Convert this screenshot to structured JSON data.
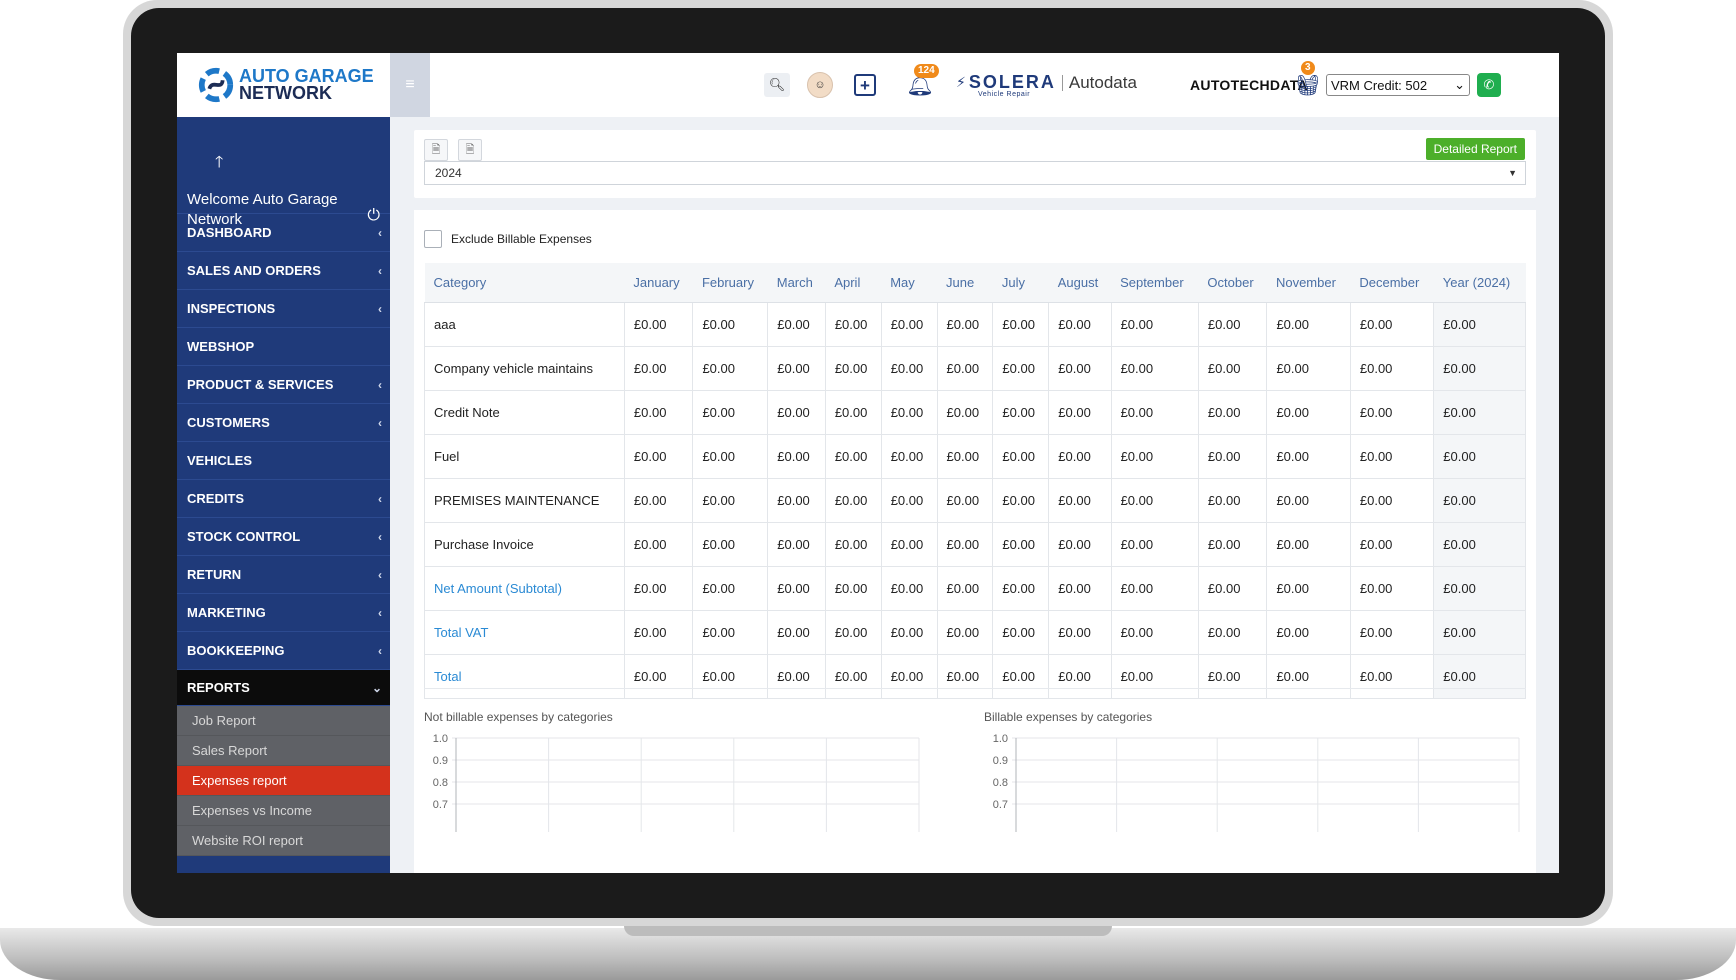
{
  "brand": {
    "line1": "AUTO GARAGE",
    "line2": "NETWORK"
  },
  "sidebar": {
    "welcome": "Welcome Auto Garage Network",
    "menu": [
      {
        "label": "DASHBOARD",
        "chevron": "‹"
      },
      {
        "label": "SALES AND ORDERS",
        "chevron": "‹"
      },
      {
        "label": "INSPECTIONS",
        "chevron": "‹"
      },
      {
        "label": "WEBSHOP",
        "chevron": ""
      },
      {
        "label": "PRODUCT & SERVICES",
        "chevron": "‹"
      },
      {
        "label": "CUSTOMERS",
        "chevron": "‹"
      },
      {
        "label": "VEHICLES",
        "chevron": ""
      },
      {
        "label": "CREDITS",
        "chevron": "‹"
      },
      {
        "label": "STOCK CONTROL",
        "chevron": "‹"
      },
      {
        "label": "RETURN",
        "chevron": "‹"
      },
      {
        "label": "MARKETING",
        "chevron": "‹"
      },
      {
        "label": "BOOKKEEPING",
        "chevron": "‹"
      },
      {
        "label": "REPORTS",
        "chevron": "⌄"
      }
    ],
    "submenu": [
      "Job Report",
      "Sales Report",
      "Expenses report",
      "Expenses vs Income",
      "Website ROI report"
    ]
  },
  "topbar": {
    "notifications_count": "124",
    "solera_logo": "SOLERA",
    "solera_sub": "Vehicle Repair",
    "autodata_logo": "Autodata",
    "autotechdata_logo": "AUTOTECHDATA",
    "cart_count": "3",
    "vrm_credit": "VRM Credit: 502"
  },
  "toolbar": {
    "detailed_report": "Detailed Report",
    "year": "2024"
  },
  "filter": {
    "exclude_billable_label": "Exclude Billable Expenses"
  },
  "table": {
    "headers": [
      "Category",
      "January",
      "February",
      "March",
      "April",
      "May",
      "June",
      "July",
      "August",
      "September",
      "October",
      "November",
      "December",
      "Year (2024)"
    ],
    "rows": [
      {
        "category": "aaa",
        "values": [
          "£0.00",
          "£0.00",
          "£0.00",
          "£0.00",
          "£0.00",
          "£0.00",
          "£0.00",
          "£0.00",
          "£0.00",
          "£0.00",
          "£0.00",
          "£0.00",
          "£0.00"
        ]
      },
      {
        "category": "Company vehicle maintains",
        "values": [
          "£0.00",
          "£0.00",
          "£0.00",
          "£0.00",
          "£0.00",
          "£0.00",
          "£0.00",
          "£0.00",
          "£0.00",
          "£0.00",
          "£0.00",
          "£0.00",
          "£0.00"
        ]
      },
      {
        "category": "Credit Note",
        "values": [
          "£0.00",
          "£0.00",
          "£0.00",
          "£0.00",
          "£0.00",
          "£0.00",
          "£0.00",
          "£0.00",
          "£0.00",
          "£0.00",
          "£0.00",
          "£0.00",
          "£0.00"
        ]
      },
      {
        "category": "Fuel",
        "values": [
          "£0.00",
          "£0.00",
          "£0.00",
          "£0.00",
          "£0.00",
          "£0.00",
          "£0.00",
          "£0.00",
          "£0.00",
          "£0.00",
          "£0.00",
          "£0.00",
          "£0.00"
        ]
      },
      {
        "category": "PREMISES MAINTENANCE",
        "values": [
          "£0.00",
          "£0.00",
          "£0.00",
          "£0.00",
          "£0.00",
          "£0.00",
          "£0.00",
          "£0.00",
          "£0.00",
          "£0.00",
          "£0.00",
          "£0.00",
          "£0.00"
        ]
      },
      {
        "category": "Purchase Invoice",
        "values": [
          "£0.00",
          "£0.00",
          "£0.00",
          "£0.00",
          "£0.00",
          "£0.00",
          "£0.00",
          "£0.00",
          "£0.00",
          "£0.00",
          "£0.00",
          "£0.00",
          "£0.00"
        ]
      },
      {
        "category": "Net Amount (Subtotal)",
        "link": true,
        "values": [
          "£0.00",
          "£0.00",
          "£0.00",
          "£0.00",
          "£0.00",
          "£0.00",
          "£0.00",
          "£0.00",
          "£0.00",
          "£0.00",
          "£0.00",
          "£0.00",
          "£0.00"
        ]
      },
      {
        "category": "Total VAT",
        "link": true,
        "values": [
          "£0.00",
          "£0.00",
          "£0.00",
          "£0.00",
          "£0.00",
          "£0.00",
          "£0.00",
          "£0.00",
          "£0.00",
          "£0.00",
          "£0.00",
          "£0.00",
          "£0.00"
        ]
      },
      {
        "category": "Total",
        "link": true,
        "values": [
          "£0.00",
          "£0.00",
          "£0.00",
          "£0.00",
          "£0.00",
          "£0.00",
          "£0.00",
          "£0.00",
          "£0.00",
          "£0.00",
          "£0.00",
          "£0.00",
          "£0.00"
        ]
      }
    ]
  },
  "chart_data": [
    {
      "type": "bar",
      "title": "Not billable expenses by categories",
      "categories": [],
      "values": [],
      "ylim": [
        0.7,
        1.0
      ],
      "yticks": [
        "1.0",
        "0.9",
        "0.8",
        "0.7"
      ]
    },
    {
      "type": "bar",
      "title": "Billable expenses by categories",
      "categories": [],
      "values": [],
      "ylim": [
        0.7,
        1.0
      ],
      "yticks": [
        "1.0",
        "0.9",
        "0.8",
        "0.7"
      ]
    }
  ],
  "colors": {
    "sidebar": "#1f3a7a",
    "active_submenu": "#d4321c",
    "primary_button": "#4caf2a",
    "link": "#2a8ad4",
    "badge": "#f08a1a"
  }
}
